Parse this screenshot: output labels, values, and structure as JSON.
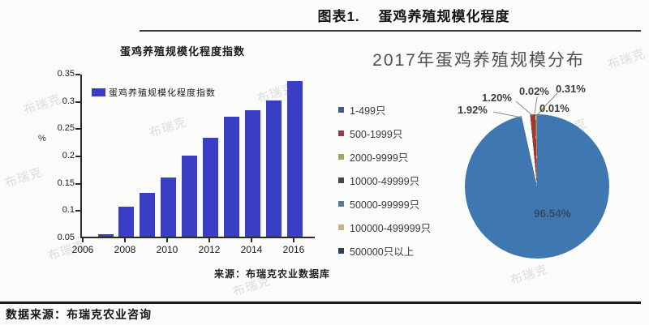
{
  "page": {
    "header_title": "图表1.    蛋鸡养殖规模化程度",
    "footer_source": "数据来源：布瑞克农业咨询",
    "watermark": "布瑞克"
  },
  "chart_data": [
    {
      "type": "bar",
      "title": "蛋鸡养殖规模化程度指数",
      "legend": [
        "蛋鸡养殖规模化程度指数"
      ],
      "categories": [
        "2007",
        "2008",
        "2009",
        "2010",
        "2011",
        "2012",
        "2013",
        "2014",
        "2015",
        "2016"
      ],
      "values": [
        0.055,
        0.105,
        0.13,
        0.158,
        0.198,
        0.232,
        0.27,
        0.282,
        0.3,
        0.335
      ],
      "x_ticks": [
        "2006",
        "2008",
        "2010",
        "2012",
        "2014",
        "2016"
      ],
      "y_ticks": [
        "0.35",
        "0.3",
        "0.25",
        "0.2",
        "0.15",
        "0.1",
        "0.05"
      ],
      "ylim": [
        0.05,
        0.35
      ],
      "y_unit": "%",
      "grid": false,
      "legend_position": "top-left",
      "bar_color": "#3a3ec5",
      "source_note": "来源：布瑞克农业数据库"
    },
    {
      "type": "pie",
      "title": "2017年蛋鸡养殖规模分布",
      "categories": [
        "1-499只",
        "500-1999只",
        "2000-9999只",
        "10000-49999只",
        "50000-99999只",
        "100000-499999只",
        "500000只以上"
      ],
      "values": [
        96.54,
        1.92,
        1.2,
        0.02,
        0.31,
        0.01,
        0
      ],
      "data_labels": [
        "96.54%",
        "1.92%",
        "1.20%",
        "0.02%",
        "0.31%",
        "0.01%"
      ],
      "legend_position": "left",
      "legend_colors": [
        "#44598c",
        "#9c3a44",
        "#a4a65c",
        "#45454a",
        "#5a7a99",
        "#c9b581",
        "#2f3f55"
      ],
      "slice_display": {
        "values": [
          96.54,
          1.92,
          1.2,
          0.02,
          0.31,
          0.01
        ],
        "colors": [
          "#3f77b1",
          "#ffffff",
          "#9e3a33",
          "#ffffff",
          "#9f9759",
          "#ffffff"
        ]
      }
    }
  ]
}
